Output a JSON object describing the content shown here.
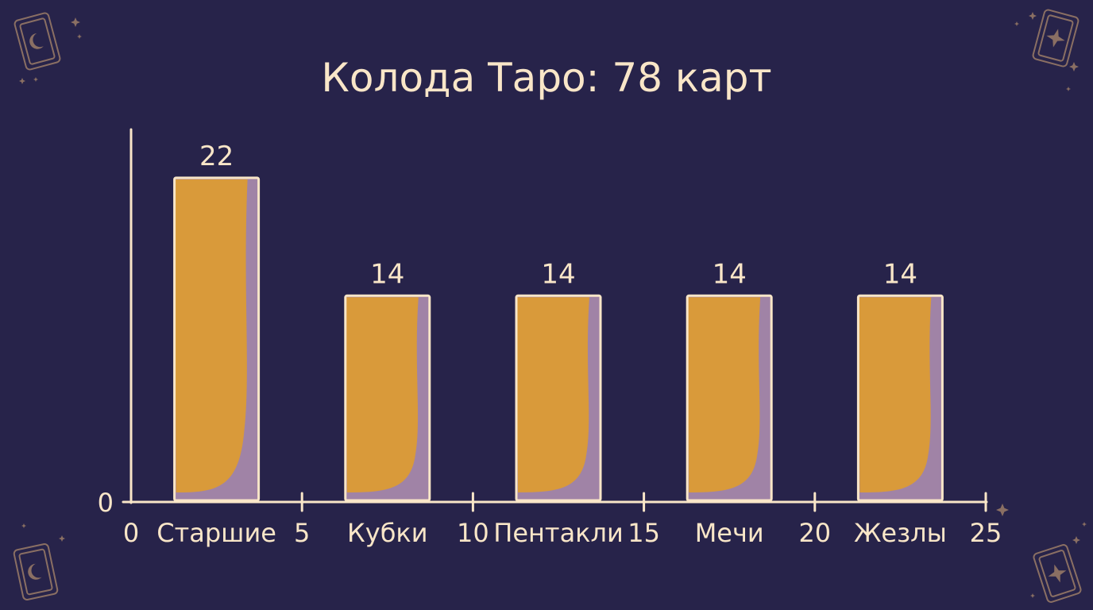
{
  "chart_data": {
    "type": "bar",
    "title": "Колода Таро: 78 карт",
    "categories": [
      "Старшие",
      "Кубки",
      "Пентакли",
      "Мечи",
      "Жезлы"
    ],
    "category_positions": [
      2.5,
      7.5,
      12.5,
      17.5,
      22.5
    ],
    "values": [
      22,
      14,
      14,
      14,
      14
    ],
    "value_labels": [
      "22",
      "14",
      "14",
      "14",
      "14"
    ],
    "x_ticks": [
      "0",
      "5",
      "10",
      "15",
      "20",
      "25"
    ],
    "xlim": [
      0,
      25
    ],
    "y_ticks": [
      "0"
    ],
    "ylim": [
      0,
      25
    ],
    "xlabel": "",
    "ylabel": "",
    "grid": false,
    "legend": "none"
  },
  "colors": {
    "background": "#27234a",
    "bar_fill": "#d99a3a",
    "bar_shadow": "#a083a6",
    "bar_outline": "#f9e6c8",
    "axis": "#f9e6c8",
    "text": "#f9e6c8",
    "decoration": "#8a6f63"
  },
  "decorations": {
    "icons": [
      "tarot-card-moon-icon",
      "tarot-card-sun-icon",
      "sparkle-star-icon"
    ]
  }
}
